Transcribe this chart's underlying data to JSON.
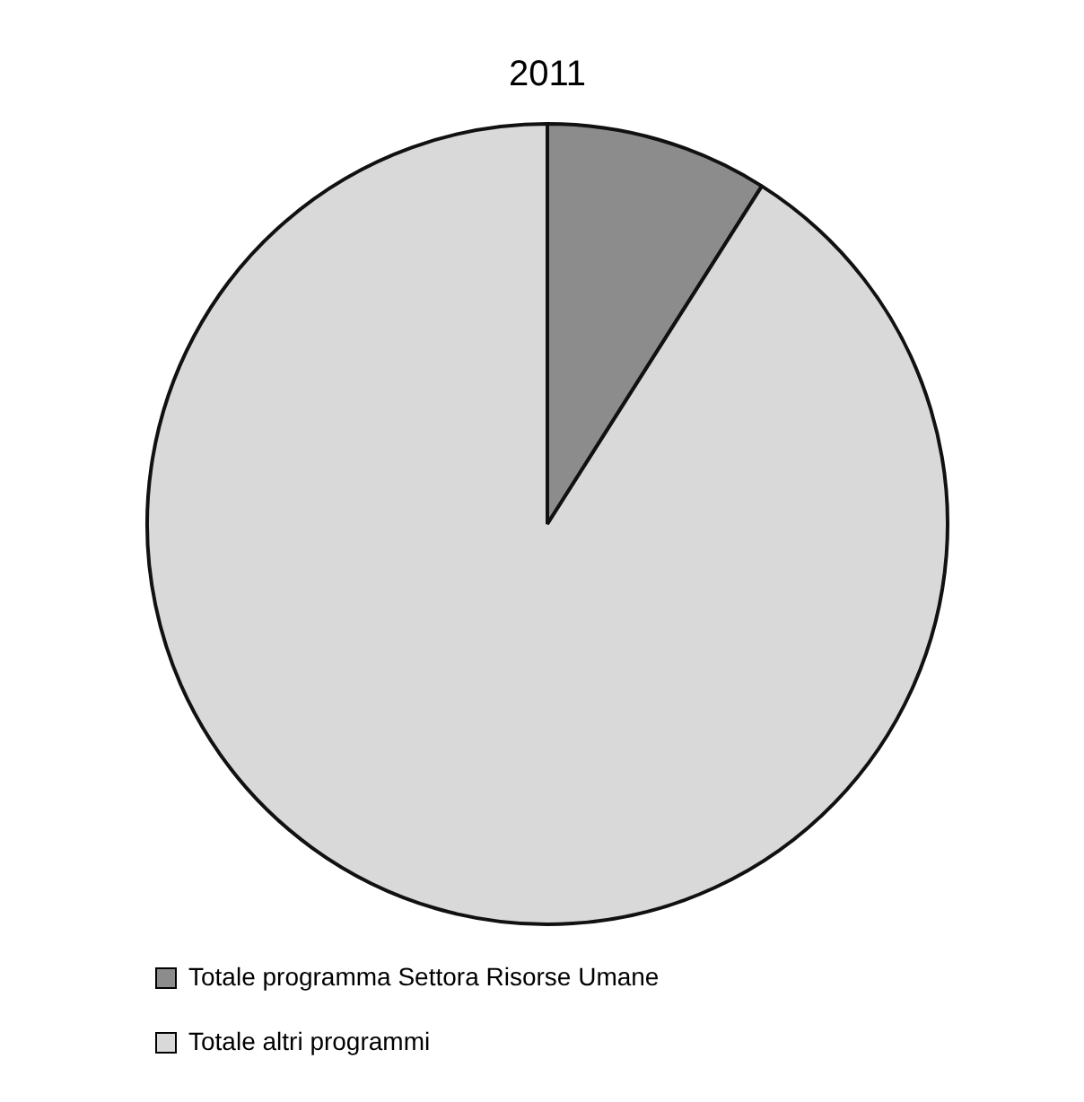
{
  "chart_data": {
    "type": "pie",
    "title": "2011",
    "categories": [
      "Totale programma Settora Risorse Umane",
      "Totale altri programmi"
    ],
    "values": [
      9,
      91
    ],
    "colors": [
      "#8c8c8c",
      "#d9d9d9"
    ],
    "legend": "bottom"
  }
}
